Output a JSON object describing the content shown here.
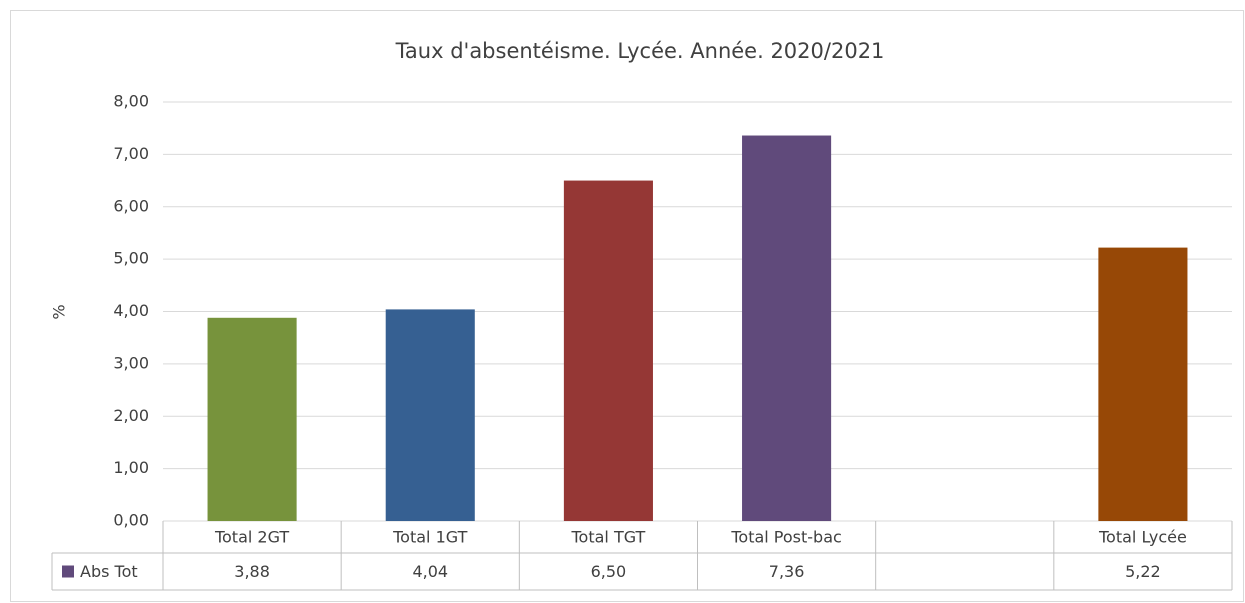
{
  "chart_data": {
    "type": "bar",
    "title": "Taux d'absentéisme. Lycée. Année. 2020/2021",
    "y_label": "%",
    "categories": [
      "Total 2GT",
      "Total 1GT",
      "Total TGT",
      "Total Post-bac",
      null,
      "Total Lycée"
    ],
    "series": [
      {
        "name": "Abs Tot",
        "color": "#604a7b",
        "colors": [
          "#77933c",
          "#366092",
          "#953735",
          "#604a7b",
          null,
          "#974806"
        ],
        "values": [
          3.88,
          4.04,
          6.5,
          7.36,
          null,
          5.22
        ],
        "value_labels": [
          "3,88",
          "4,04",
          "6,50",
          "7,36",
          null,
          "5,22"
        ]
      }
    ],
    "ylim": [
      0,
      8
    ],
    "yticks": [
      {
        "value": 0,
        "label": "0,00"
      },
      {
        "value": 1,
        "label": "1,00"
      },
      {
        "value": 2,
        "label": "2,00"
      },
      {
        "value": 3,
        "label": "3,00"
      },
      {
        "value": 4,
        "label": "4,00"
      },
      {
        "value": 5,
        "label": "5,00"
      },
      {
        "value": 6,
        "label": "6,00"
      },
      {
        "value": 7,
        "label": "7,00"
      },
      {
        "value": 8,
        "label": "8,00"
      }
    ],
    "grid": true
  }
}
